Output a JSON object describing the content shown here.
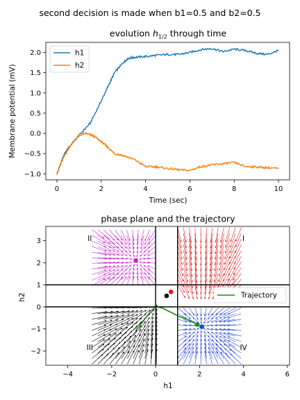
{
  "suptitle": "second decision is made when b1=0.5 and b2=0.5",
  "chart_data": [
    {
      "type": "line",
      "title": "evolution h_{1/2} through time",
      "title_main": "evolution ",
      "title_math": "h",
      "title_sub": "1/2",
      "title_end": " through time",
      "xlabel": "Time (sec)",
      "ylabel": "Membrane potential (mV)",
      "xlim": [
        -0.5,
        10.5
      ],
      "ylim": [
        -1.15,
        2.25
      ],
      "xticks": [
        0,
        2,
        4,
        6,
        8,
        10
      ],
      "yticks": [
        -1.0,
        -0.5,
        0.0,
        0.5,
        1.0,
        1.5,
        2.0
      ],
      "ytick_labels": [
        "−1.0",
        "−0.5",
        "0.0",
        "0.5",
        "1.0",
        "1.5",
        "2.0"
      ],
      "grid": false,
      "legend_position": "top-left",
      "series": [
        {
          "name": "h1",
          "color": "#1f77b4",
          "x": [
            0,
            0.3,
            0.6,
            1.0,
            1.5,
            2.0,
            2.3,
            2.6,
            3.0,
            3.2,
            3.5,
            4.0,
            4.5,
            5.0,
            5.5,
            6.0,
            6.5,
            7.0,
            7.5,
            8.0,
            8.5,
            9.0,
            9.5,
            10.0
          ],
          "values": [
            -1.0,
            -0.55,
            -0.3,
            -0.05,
            0.25,
            0.8,
            1.15,
            1.5,
            1.75,
            1.85,
            1.88,
            1.9,
            1.93,
            1.95,
            1.95,
            2.0,
            2.07,
            2.1,
            2.02,
            2.08,
            2.05,
            1.98,
            1.95,
            2.05
          ]
        },
        {
          "name": "h2",
          "color": "#ff7f0e",
          "x": [
            0,
            0.3,
            0.6,
            1.0,
            1.3,
            1.6,
            2.0,
            2.3,
            2.6,
            3.0,
            3.5,
            4.0,
            4.5,
            5.0,
            5.5,
            6.0,
            6.5,
            7.0,
            7.5,
            8.0,
            8.5,
            9.0,
            9.5,
            10.0
          ],
          "values": [
            -1.0,
            -0.6,
            -0.3,
            -0.05,
            0.0,
            -0.05,
            -0.2,
            -0.35,
            -0.5,
            -0.55,
            -0.65,
            -0.82,
            -0.83,
            -0.87,
            -0.9,
            -0.92,
            -0.82,
            -0.78,
            -0.75,
            -0.72,
            -0.82,
            -0.83,
            -0.85,
            -0.87
          ]
        }
      ]
    },
    {
      "type": "scatter",
      "title": "phase plane and the trajectory",
      "xlabel": "h1",
      "ylabel": "h2",
      "xlim": [
        -5,
        6.1
      ],
      "ylim": [
        -2.65,
        3.65
      ],
      "xticks": [
        -4,
        -2,
        0,
        2,
        4,
        6
      ],
      "xtick_labels": [
        "−4",
        "−2",
        "0",
        "2",
        "4",
        "6"
      ],
      "yticks": [
        -2,
        -1,
        0,
        1,
        2,
        3
      ],
      "ytick_labels": [
        "−2",
        "−1",
        "0",
        "1",
        "2",
        "3"
      ],
      "grid": false,
      "legend_position": "right",
      "threshold_lines": {
        "x": [
          0,
          1
        ],
        "y": [
          0,
          1
        ]
      },
      "quadrant_labels": [
        {
          "text": "I",
          "x": 4,
          "y": 3.1
        },
        {
          "text": "II",
          "x": -3,
          "y": 3.1
        },
        {
          "text": "III",
          "x": -3,
          "y": -1.85
        },
        {
          "text": "IV",
          "x": 4,
          "y": -1.85
        }
      ],
      "fixed_points": [
        {
          "name": "II",
          "x": -0.9,
          "y": 2.1,
          "color": "#c71fc9"
        },
        {
          "name": "IV",
          "x": 2.1,
          "y": -0.9,
          "color": "#1f3fd8"
        },
        {
          "name": "b",
          "x": 0.5,
          "y": 0.5,
          "color": "#000000"
        },
        {
          "name": "r",
          "x": 0.7,
          "y": 0.68,
          "color": "#e01818"
        },
        {
          "name": "start",
          "x": 1.9,
          "y": -0.8,
          "color": "#1a8c1a"
        }
      ],
      "vector_fields": [
        {
          "quadrant": "I",
          "color": "#e32020",
          "xmin": 1.0,
          "xmax": 3.9,
          "ymin": 1.0,
          "ymax": 3.6,
          "target_x": 2.1,
          "target_y": -0.9
        },
        {
          "quadrant": "II",
          "color": "#c71fc9",
          "xmin": -2.9,
          "xmax": 0.0,
          "ymin": 0.95,
          "ymax": 3.5,
          "target_x": -0.9,
          "target_y": 2.1
        },
        {
          "quadrant": "III",
          "color": "#000000",
          "xmin": -2.9,
          "xmax": 0.05,
          "ymin": -2.6,
          "ymax": -0.05,
          "target_x": 0.05,
          "target_y": 0.05
        },
        {
          "quadrant": "IV",
          "color": "#1f3fd8",
          "xmin": 1.0,
          "xmax": 3.9,
          "ymin": -2.6,
          "ymax": -0.05,
          "target_x": 2.1,
          "target_y": -0.9
        }
      ],
      "series": [
        {
          "name": "Trajectory",
          "color": "#1a8c1a",
          "x": [
            -0.9,
            -0.6,
            -0.3,
            -0.1,
            0.1,
            0.3,
            0.5,
            0.8,
            1.1,
            1.4,
            1.6,
            1.8,
            1.9
          ],
          "y": [
            -1.05,
            -0.7,
            -0.3,
            -0.08,
            -0.02,
            -0.05,
            -0.15,
            -0.3,
            -0.45,
            -0.55,
            -0.65,
            -0.75,
            -0.8
          ]
        }
      ]
    }
  ]
}
